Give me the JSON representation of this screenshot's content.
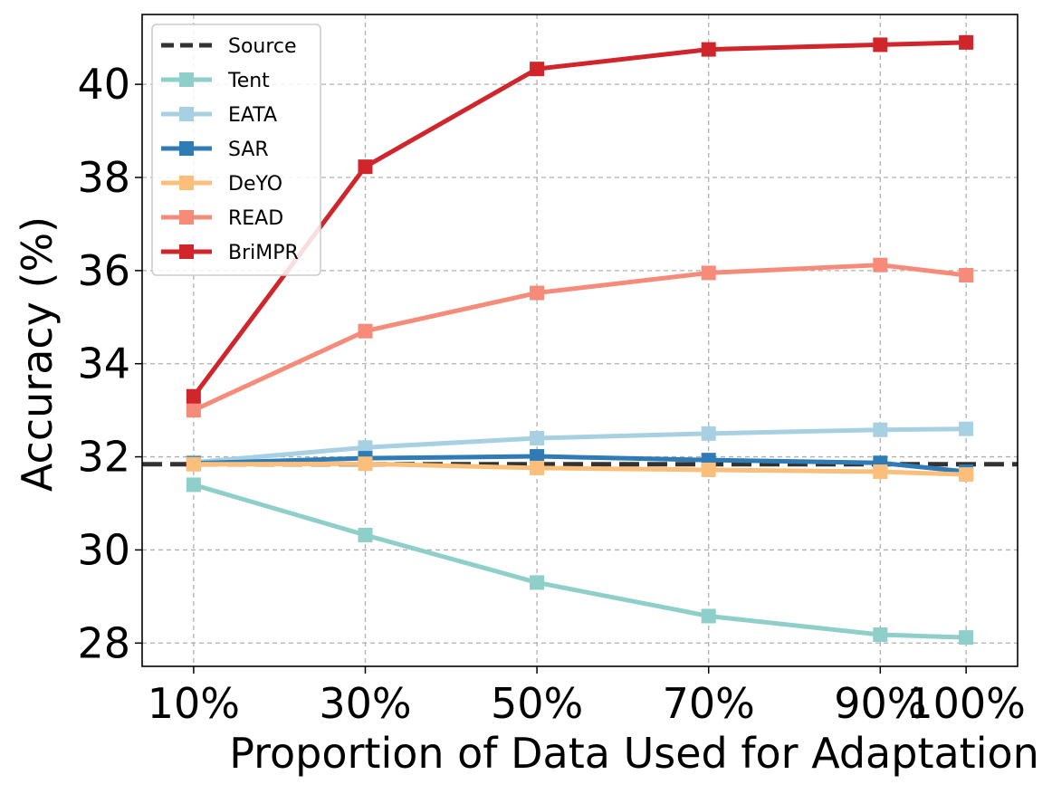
{
  "chart_data": {
    "type": "line",
    "title": "",
    "xlabel": "Proportion of Data Used for Adaptation",
    "ylabel": "Accuracy (%)",
    "categories": [
      "10%",
      "30%",
      "50%",
      "70%",
      "90%",
      "100%"
    ],
    "x": [
      10,
      30,
      50,
      70,
      90,
      100
    ],
    "xlim": [
      4,
      106
    ],
    "ylim": [
      27.5,
      41.5
    ],
    "yticks": [
      28,
      30,
      32,
      34,
      36,
      38,
      40
    ],
    "grid": true,
    "legend_position": "top-left",
    "baseline": {
      "name": "Source",
      "value": 31.84,
      "color": "#333333",
      "style": "dashed"
    },
    "series": [
      {
        "name": "Tent",
        "color": "#8ecfc9",
        "values": [
          31.4,
          30.32,
          29.3,
          28.58,
          28.18,
          28.12
        ]
      },
      {
        "name": "EATA",
        "color": "#a8d0e3",
        "values": [
          31.88,
          32.2,
          32.4,
          32.5,
          32.58,
          32.6
        ]
      },
      {
        "name": "SAR",
        "color": "#2f7bb5",
        "values": [
          31.86,
          31.97,
          32.01,
          31.93,
          31.87,
          31.68
        ]
      },
      {
        "name": "DeYO",
        "color": "#fcbf7b",
        "values": [
          31.84,
          31.85,
          31.76,
          31.72,
          31.68,
          31.62
        ]
      },
      {
        "name": "READ",
        "color": "#f68b7a",
        "values": [
          33.0,
          34.7,
          35.52,
          35.95,
          36.12,
          35.9
        ]
      },
      {
        "name": "BriMPR",
        "color": "#d0262b",
        "values": [
          33.3,
          38.23,
          40.33,
          40.75,
          40.85,
          40.9
        ]
      }
    ]
  }
}
